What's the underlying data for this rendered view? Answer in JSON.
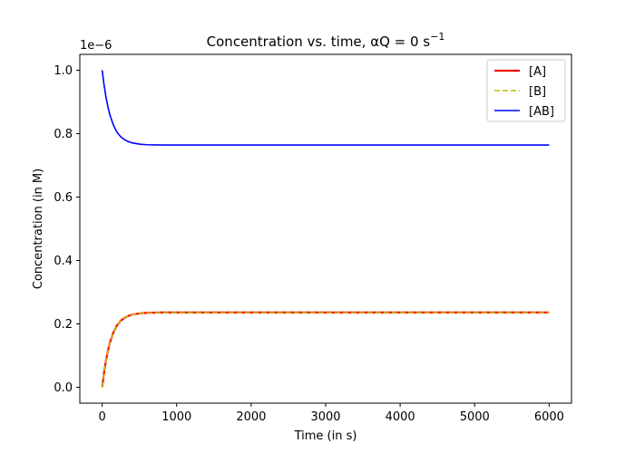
{
  "chart_data": {
    "type": "line",
    "title": "Concentration vs. time, αQ = 0 s",
    "title_superscript": "−1",
    "xlabel": "Time (in s)",
    "ylabel": "Concentration (in M)",
    "y_offset_label": "1e−6",
    "xlim": [
      -300,
      6300
    ],
    "ylim": [
      -0.05,
      1.05
    ],
    "x_ticks": [
      0,
      1000,
      2000,
      3000,
      4000,
      5000,
      6000
    ],
    "x_tick_labels": [
      "0",
      "1000",
      "2000",
      "3000",
      "4000",
      "5000",
      "6000"
    ],
    "y_ticks": [
      0.0,
      0.2,
      0.4,
      0.6,
      0.8,
      1.0
    ],
    "y_tick_labels": [
      "0.0",
      "0.2",
      "0.4",
      "0.6",
      "0.8",
      "1.0"
    ],
    "grid": false,
    "legend_position": "top-right",
    "series": [
      {
        "name": "[A]",
        "color": "#ff0000",
        "dash": "solid",
        "x": [
          0,
          25,
          50,
          75,
          100,
          150,
          200,
          250,
          300,
          350,
          400,
          500,
          600,
          800,
          1000,
          2000,
          3000,
          4000,
          5000,
          6000
        ],
        "y": [
          0.0,
          0.046,
          0.083,
          0.113,
          0.138,
          0.173,
          0.196,
          0.21,
          0.219,
          0.225,
          0.229,
          0.233,
          0.235,
          0.236,
          0.236,
          0.236,
          0.236,
          0.236,
          0.236,
          0.236
        ]
      },
      {
        "name": "[B]",
        "color": "#bfbf00",
        "dash": "dashed",
        "x": [
          0,
          25,
          50,
          75,
          100,
          150,
          200,
          250,
          300,
          350,
          400,
          500,
          600,
          800,
          1000,
          2000,
          3000,
          4000,
          5000,
          6000
        ],
        "y": [
          0.0,
          0.046,
          0.083,
          0.113,
          0.138,
          0.173,
          0.196,
          0.21,
          0.219,
          0.225,
          0.229,
          0.233,
          0.235,
          0.236,
          0.236,
          0.236,
          0.236,
          0.236,
          0.236,
          0.236
        ]
      },
      {
        "name": "[AB]",
        "color": "#0000ff",
        "dash": "solid",
        "x": [
          0,
          25,
          50,
          75,
          100,
          150,
          200,
          250,
          300,
          350,
          400,
          500,
          600,
          800,
          1000,
          2000,
          3000,
          4000,
          5000,
          6000
        ],
        "y": [
          1.0,
          0.954,
          0.917,
          0.887,
          0.862,
          0.827,
          0.804,
          0.79,
          0.781,
          0.775,
          0.771,
          0.767,
          0.765,
          0.764,
          0.764,
          0.764,
          0.764,
          0.764,
          0.764,
          0.764
        ]
      }
    ]
  }
}
